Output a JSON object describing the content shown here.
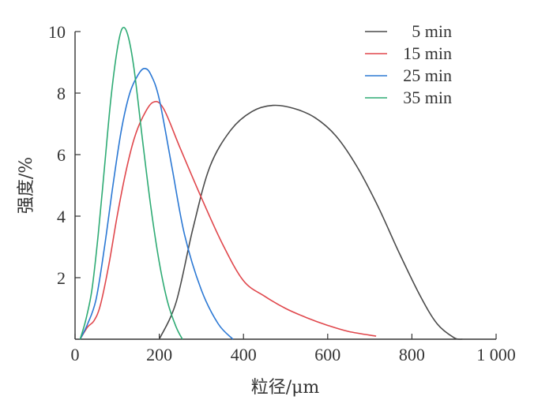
{
  "chart_data": {
    "type": "line",
    "xlabel": "粒径/μm",
    "ylabel": "强度/%",
    "xlim": [
      0,
      1000
    ],
    "ylim": [
      0,
      10
    ],
    "xticks": [
      0,
      200,
      400,
      600,
      800,
      1000
    ],
    "xtick_labels": [
      "0",
      "200",
      "400",
      "600",
      "800",
      "1 000"
    ],
    "yticks": [
      2,
      4,
      6,
      8,
      10
    ],
    "ytick_labels": [
      "2",
      "4",
      "6",
      "8",
      "10"
    ],
    "grid": false,
    "legend_position": "top-right",
    "series": [
      {
        "name": "5 min",
        "color": "#4a4a4a",
        "points": [
          [
            200,
            0
          ],
          [
            240,
            1.2
          ],
          [
            280,
            3.6
          ],
          [
            320,
            5.6
          ],
          [
            370,
            6.8
          ],
          [
            420,
            7.4
          ],
          [
            470,
            7.6
          ],
          [
            520,
            7.5
          ],
          [
            570,
            7.2
          ],
          [
            620,
            6.6
          ],
          [
            670,
            5.6
          ],
          [
            720,
            4.3
          ],
          [
            770,
            2.8
          ],
          [
            820,
            1.4
          ],
          [
            860,
            0.5
          ],
          [
            900,
            0.05
          ],
          [
            920,
            0
          ]
        ]
      },
      {
        "name": "15 min",
        "color": "#e0474c",
        "points": [
          [
            12,
            0
          ],
          [
            30,
            0.4
          ],
          [
            45,
            0.6
          ],
          [
            60,
            1.1
          ],
          [
            80,
            2.4
          ],
          [
            100,
            4.0
          ],
          [
            120,
            5.4
          ],
          [
            140,
            6.5
          ],
          [
            160,
            7.2
          ],
          [
            185,
            7.7
          ],
          [
            210,
            7.5
          ],
          [
            250,
            6.2
          ],
          [
            300,
            4.6
          ],
          [
            350,
            3.1
          ],
          [
            400,
            1.9
          ],
          [
            450,
            1.4
          ],
          [
            500,
            1.0
          ],
          [
            550,
            0.7
          ],
          [
            600,
            0.45
          ],
          [
            650,
            0.25
          ],
          [
            715,
            0.1
          ]
        ]
      },
      {
        "name": "25 min",
        "color": "#2b78d4",
        "points": [
          [
            12,
            0
          ],
          [
            30,
            0.5
          ],
          [
            50,
            1.3
          ],
          [
            70,
            3.0
          ],
          [
            90,
            5.0
          ],
          [
            110,
            6.8
          ],
          [
            130,
            8.0
          ],
          [
            150,
            8.6
          ],
          [
            165,
            8.8
          ],
          [
            180,
            8.6
          ],
          [
            200,
            7.8
          ],
          [
            230,
            5.6
          ],
          [
            260,
            3.4
          ],
          [
            300,
            1.6
          ],
          [
            340,
            0.5
          ],
          [
            375,
            0
          ]
        ]
      },
      {
        "name": "35 min",
        "color": "#2eab74",
        "points": [
          [
            12,
            0
          ],
          [
            25,
            0.6
          ],
          [
            40,
            1.6
          ],
          [
            55,
            3.4
          ],
          [
            70,
            5.6
          ],
          [
            85,
            7.8
          ],
          [
            100,
            9.4
          ],
          [
            112,
            10.1
          ],
          [
            125,
            9.9
          ],
          [
            140,
            8.8
          ],
          [
            160,
            6.5
          ],
          [
            180,
            4.3
          ],
          [
            200,
            2.5
          ],
          [
            220,
            1.2
          ],
          [
            240,
            0.4
          ],
          [
            255,
            0
          ]
        ]
      }
    ]
  }
}
